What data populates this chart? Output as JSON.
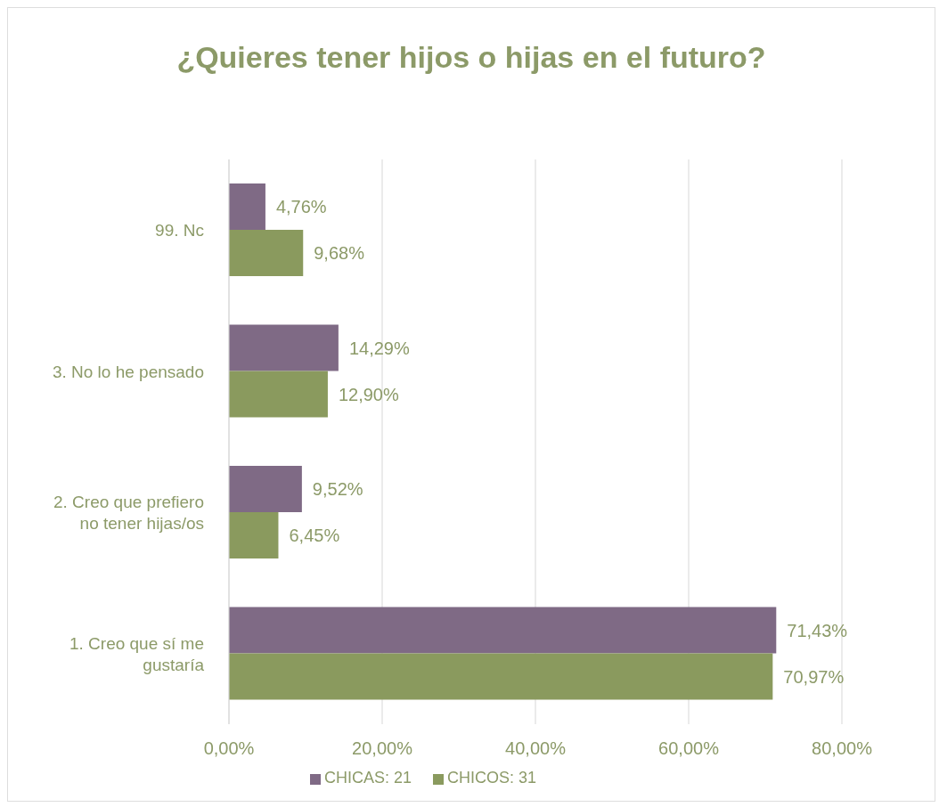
{
  "chart_data": {
    "type": "bar",
    "orientation": "horizontal",
    "title": "¿Quieres tener hijos o hijas en el futuro?",
    "categories": [
      "99. Nc",
      "3. No lo he pensado",
      "2. Creo que prefiero no tener hijas/os",
      "1. Creo que sí me gustaría"
    ],
    "series": [
      {
        "name": "CHICAS: 21",
        "color": "#7f6a85",
        "values": [
          4.76,
          14.29,
          9.52,
          71.43
        ],
        "value_labels": [
          "4,76%",
          "14,29%",
          "9,52%",
          "71,43%"
        ]
      },
      {
        "name": "CHICOS: 31",
        "color": "#8a9a5e",
        "values": [
          9.68,
          12.9,
          6.45,
          70.97
        ],
        "value_labels": [
          "9,68%",
          "12,90%",
          "6,45%",
          "70,97%"
        ]
      }
    ],
    "xlim": [
      0,
      80
    ],
    "xticks": [
      {
        "value": 0,
        "label": "0,00%"
      },
      {
        "value": 20,
        "label": "20,00%"
      },
      {
        "value": 40,
        "label": "40,00%"
      },
      {
        "value": 60,
        "label": "60,00%"
      },
      {
        "value": 80,
        "label": "80,00%"
      }
    ],
    "grid": "x",
    "legend": "bottom"
  }
}
